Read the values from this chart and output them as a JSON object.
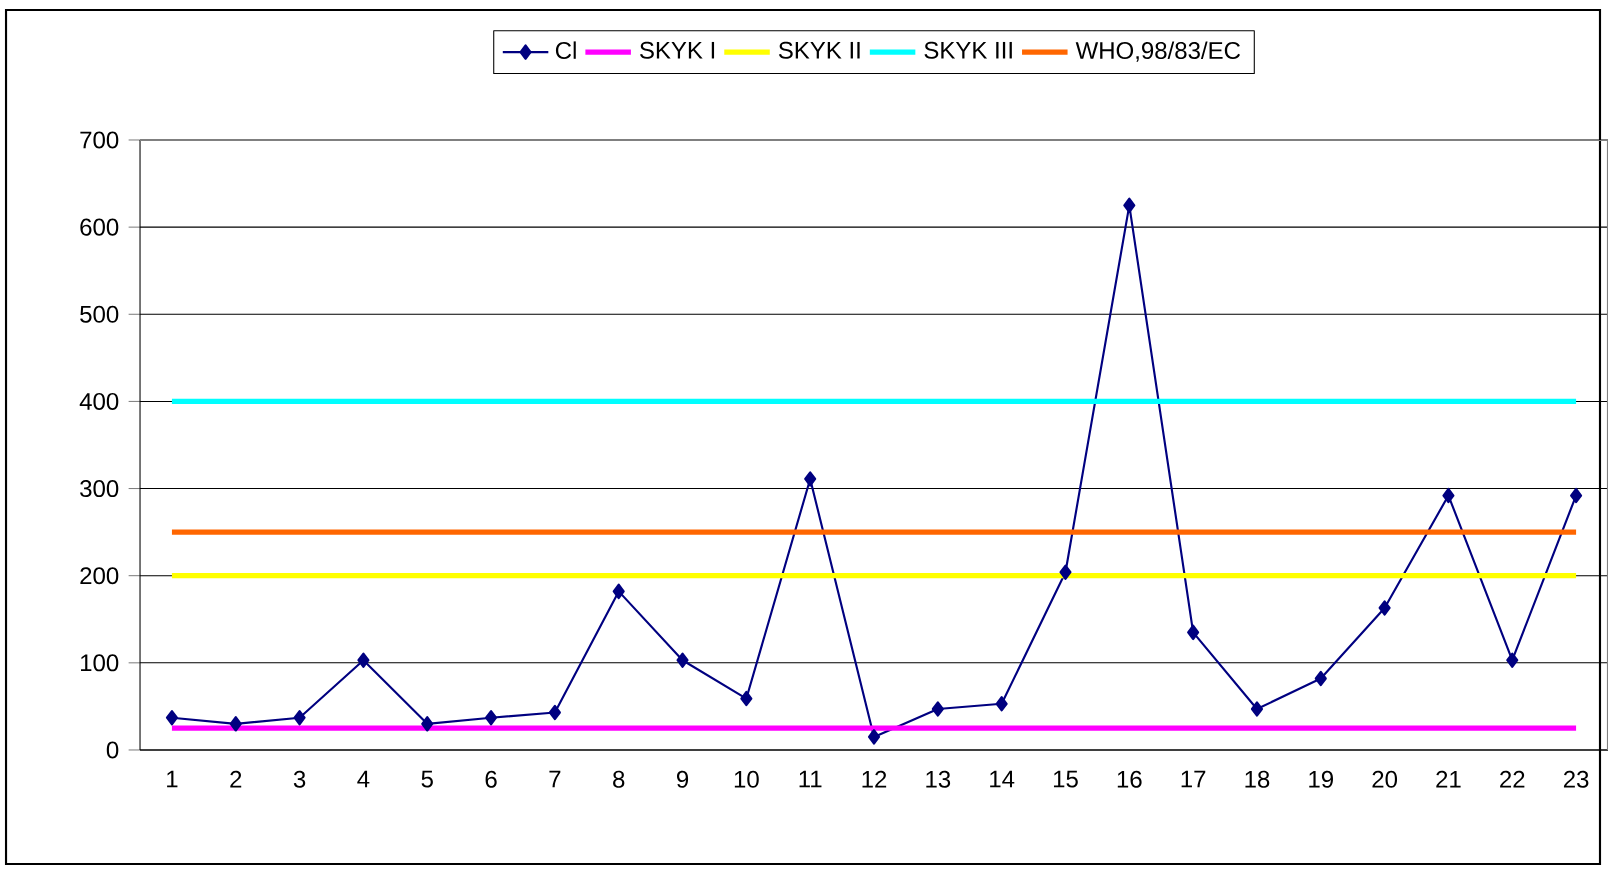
{
  "chart_data": {
    "type": "line",
    "categories": [
      "1",
      "2",
      "3",
      "4",
      "5",
      "6",
      "7",
      "8",
      "9",
      "10",
      "11",
      "12",
      "13",
      "14",
      "15",
      "16",
      "17",
      "18",
      "19",
      "20",
      "21",
      "22",
      "23"
    ],
    "series": [
      {
        "name": "Cl",
        "color": "#000080",
        "marker": "diamond",
        "values": [
          37,
          30,
          37,
          103,
          30,
          37,
          43,
          182,
          103,
          59,
          311,
          15,
          47,
          53,
          204,
          625,
          135,
          47,
          82,
          163,
          292,
          103,
          292
        ]
      },
      {
        "name": "SKYK I",
        "color": "#ff00ff",
        "marker": "none",
        "values": [
          25,
          25,
          25,
          25,
          25,
          25,
          25,
          25,
          25,
          25,
          25,
          25,
          25,
          25,
          25,
          25,
          25,
          25,
          25,
          25,
          25,
          25,
          25
        ]
      },
      {
        "name": "SKYK II",
        "color": "#ffff00",
        "marker": "none",
        "values": [
          200,
          200,
          200,
          200,
          200,
          200,
          200,
          200,
          200,
          200,
          200,
          200,
          200,
          200,
          200,
          200,
          200,
          200,
          200,
          200,
          200,
          200,
          200
        ]
      },
      {
        "name": "SKYK III",
        "color": "#00ffff",
        "marker": "none",
        "values": [
          400,
          400,
          400,
          400,
          400,
          400,
          400,
          400,
          400,
          400,
          400,
          400,
          400,
          400,
          400,
          400,
          400,
          400,
          400,
          400,
          400,
          400,
          400
        ]
      },
      {
        "name": "WHO,98/83/EC",
        "color": "#ff6600",
        "marker": "none",
        "values": [
          250,
          250,
          250,
          250,
          250,
          250,
          250,
          250,
          250,
          250,
          250,
          250,
          250,
          250,
          250,
          250,
          250,
          250,
          250,
          250,
          250,
          250,
          250
        ]
      }
    ],
    "ylim": [
      0,
      700
    ],
    "yticks": [
      0,
      100,
      200,
      300,
      400,
      500,
      600,
      700
    ],
    "grid": "y",
    "legend": "top",
    "line_style": "solid"
  }
}
